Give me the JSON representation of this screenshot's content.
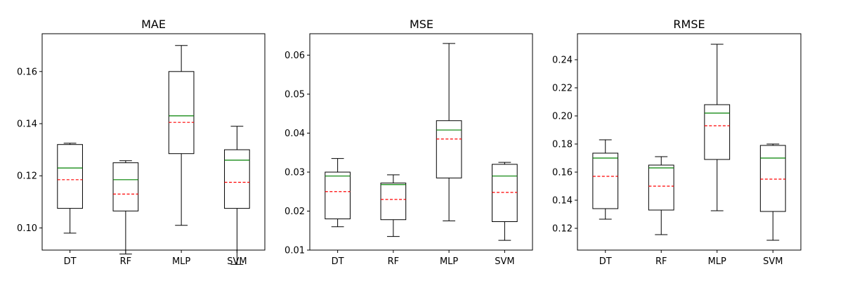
{
  "colors": {
    "box": "#000000",
    "median": "#008000",
    "mean": "#ff0000",
    "whisker": "#000000",
    "background": "#ffffff"
  },
  "chart_data": [
    {
      "type": "boxplot",
      "title": "MAE",
      "categories": [
        "DT",
        "RF",
        "MLP",
        "SVM"
      ],
      "ylim": [
        0.0915,
        0.1745
      ],
      "yticks": [
        0.1,
        0.12,
        0.14,
        0.16
      ],
      "ytick_labels": [
        "0.10",
        "0.12",
        "0.14",
        "0.16"
      ],
      "boxes": [
        {
          "whisker_low": 0.098,
          "q1": 0.1075,
          "median": 0.123,
          "mean": 0.1185,
          "q3": 0.132,
          "whisker_high": 0.1325
        },
        {
          "whisker_low": 0.09,
          "q1": 0.1065,
          "median": 0.1185,
          "mean": 0.113,
          "q3": 0.125,
          "whisker_high": 0.1258
        },
        {
          "whisker_low": 0.101,
          "q1": 0.1285,
          "median": 0.143,
          "mean": 0.1405,
          "q3": 0.16,
          "whisker_high": 0.17
        },
        {
          "whisker_low": 0.086,
          "q1": 0.1075,
          "median": 0.126,
          "mean": 0.1175,
          "q3": 0.13,
          "whisker_high": 0.139
        }
      ]
    },
    {
      "type": "boxplot",
      "title": "MSE",
      "categories": [
        "DT",
        "RF",
        "MLP",
        "SVM"
      ],
      "ylim": [
        0.01,
        0.0655
      ],
      "yticks": [
        0.01,
        0.02,
        0.03,
        0.04,
        0.05,
        0.06
      ],
      "ytick_labels": [
        "0.01",
        "0.02",
        "0.03",
        "0.04",
        "0.05",
        "0.06"
      ],
      "boxes": [
        {
          "whisker_low": 0.016,
          "q1": 0.018,
          "median": 0.029,
          "mean": 0.025,
          "q3": 0.03,
          "whisker_high": 0.0335
        },
        {
          "whisker_low": 0.0135,
          "q1": 0.0178,
          "median": 0.0268,
          "mean": 0.023,
          "q3": 0.0272,
          "whisker_high": 0.0293
        },
        {
          "whisker_low": 0.0175,
          "q1": 0.0285,
          "median": 0.0408,
          "mean": 0.0385,
          "q3": 0.0432,
          "whisker_high": 0.063
        },
        {
          "whisker_low": 0.0125,
          "q1": 0.0173,
          "median": 0.029,
          "mean": 0.0248,
          "q3": 0.032,
          "whisker_high": 0.0325
        }
      ]
    },
    {
      "type": "boxplot",
      "title": "RMSE",
      "categories": [
        "DT",
        "RF",
        "MLP",
        "SVM"
      ],
      "ylim": [
        0.1045,
        0.2585
      ],
      "yticks": [
        0.12,
        0.14,
        0.16,
        0.18,
        0.2,
        0.22,
        0.24
      ],
      "ytick_labels": [
        "0.12",
        "0.14",
        "0.16",
        "0.18",
        "0.20",
        "0.22",
        "0.24"
      ],
      "boxes": [
        {
          "whisker_low": 0.1265,
          "q1": 0.134,
          "median": 0.17,
          "mean": 0.157,
          "q3": 0.1735,
          "whisker_high": 0.183
        },
        {
          "whisker_low": 0.1155,
          "q1": 0.133,
          "median": 0.163,
          "mean": 0.15,
          "q3": 0.165,
          "whisker_high": 0.171
        },
        {
          "whisker_low": 0.1325,
          "q1": 0.169,
          "median": 0.202,
          "mean": 0.193,
          "q3": 0.208,
          "whisker_high": 0.251
        },
        {
          "whisker_low": 0.1115,
          "q1": 0.132,
          "median": 0.17,
          "mean": 0.155,
          "q3": 0.179,
          "whisker_high": 0.18
        }
      ]
    }
  ]
}
